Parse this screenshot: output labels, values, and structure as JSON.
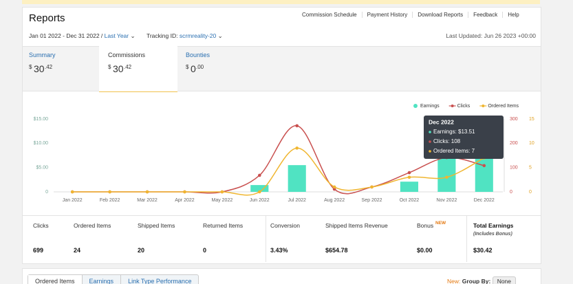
{
  "header": {
    "title": "Reports",
    "nav": [
      "Commission Schedule",
      "Payment History",
      "Download Reports",
      "Feedback",
      "Help"
    ]
  },
  "filters": {
    "date_range": "Jan 01 2022 - Dec 31 2022 /",
    "period": "Last Year",
    "tracking_label": "Tracking ID:",
    "tracking_id": "scrmreality-20",
    "last_updated": "Last Updated: Jun 26 2023 +00:00"
  },
  "tabs": [
    {
      "label": "Summary",
      "currency": "$",
      "whole": "30",
      "fraction": ".42"
    },
    {
      "label": "Commissions",
      "currency": "$",
      "whole": "30",
      "fraction": ".42"
    },
    {
      "label": "Bounties",
      "currency": "$",
      "whole": "0",
      "fraction": ".00"
    }
  ],
  "chart_data": {
    "type": "bar-line",
    "categories": [
      "Jan 2022",
      "Feb 2022",
      "Mar 2022",
      "Apr 2022",
      "May 2022",
      "Jun 2022",
      "Jul 2022",
      "Aug 2022",
      "Sep 2022",
      "Oct 2022",
      "Nov 2022",
      "Dec 2022"
    ],
    "series": [
      {
        "name": "Earnings",
        "color": "#50e3c2",
        "kind": "bar",
        "axis": "y",
        "values": [
          0,
          0,
          0,
          0,
          0,
          1.4,
          5.5,
          0,
          0,
          2.1,
          7.9,
          13.51
        ]
      },
      {
        "name": "Clicks",
        "color": "#c9504f",
        "kind": "line",
        "axis": "y2",
        "values": [
          0,
          0,
          0,
          0,
          0,
          68,
          272,
          11,
          20,
          79,
          141,
          108
        ]
      },
      {
        "name": "Ordered Items",
        "color": "#f0b630",
        "kind": "line",
        "axis": "y3",
        "values": [
          0,
          0,
          0,
          0,
          0,
          0,
          9,
          1,
          1,
          3,
          3,
          7
        ]
      }
    ],
    "ylim": [
      0,
      15
    ],
    "yticks": [
      0,
      {
        "value": 5,
        "label": "$5.00"
      },
      {
        "value": 10,
        "label": "$10.00"
      },
      {
        "value": 15,
        "label": "$15.00"
      }
    ],
    "y2lim": [
      0,
      300
    ],
    "y2ticks": [
      0,
      100,
      200,
      300
    ],
    "y3lim": [
      0,
      15
    ],
    "y3ticks": [
      0,
      5,
      10,
      15
    ],
    "legend": "top-right",
    "grid": false,
    "tooltip": {
      "title": "Dec 2022",
      "lines": [
        "Earnings: $13.51",
        "Clicks: 108",
        "Ordered Items: 7"
      ]
    }
  },
  "stats": {
    "labels": [
      "Clicks",
      "Ordered Items",
      "Shipped Items",
      "Returned Items",
      "Conversion",
      "Shipped Items Revenue",
      "Bonus",
      "Total Earnings"
    ],
    "values": [
      "699",
      "24",
      "20",
      "0",
      "3.43%",
      "$654.78",
      "$0.00",
      "$30.42"
    ],
    "bonus_badge": "NEW",
    "total_note": "(Includes Bonus)"
  },
  "bottom": {
    "tabs": [
      "Ordered Items",
      "Earnings",
      "Link Type Performance"
    ],
    "new_badge": "New:",
    "group_by": "Group By:",
    "group_value": "None"
  }
}
